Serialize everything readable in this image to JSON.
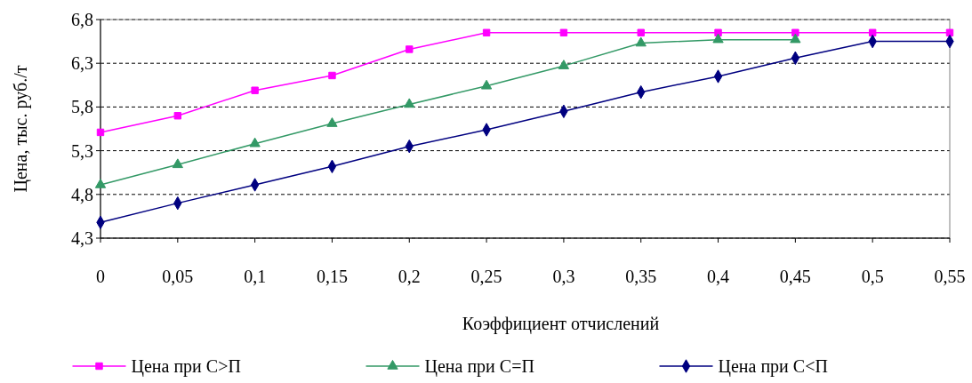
{
  "chart_data": {
    "type": "line",
    "xlabel": "Коэффициент отчислений",
    "ylabel": "Цена, тыс. руб./т",
    "categories": [
      "0",
      "0,05",
      "0,1",
      "0,15",
      "0,2",
      "0,25",
      "0,3",
      "0,35",
      "0,4",
      "0,45",
      "0,5",
      "0,55"
    ],
    "ylim": [
      4.3,
      6.8
    ],
    "yticks": [
      {
        "value": 4.3,
        "label": "4,3"
      },
      {
        "value": 4.8,
        "label": "4,8"
      },
      {
        "value": 5.3,
        "label": "5,3"
      },
      {
        "value": 5.8,
        "label": "5,8"
      },
      {
        "value": 6.3,
        "label": "6,3"
      },
      {
        "value": 6.8,
        "label": "6,8"
      }
    ],
    "grid": "y",
    "legend": "bottom",
    "series": [
      {
        "name": "Цена при С>П",
        "color": "#ff00ff",
        "marker": "square",
        "values": [
          5.51,
          5.7,
          5.99,
          6.16,
          6.46,
          6.65,
          6.65,
          6.65,
          6.65,
          6.65,
          6.65,
          6.65
        ]
      },
      {
        "name": "Цена при С=П",
        "color": "#339966",
        "marker": "triangle",
        "values": [
          4.91,
          5.14,
          5.38,
          5.61,
          5.83,
          6.04,
          6.27,
          6.53,
          6.57,
          6.57,
          null,
          null
        ]
      },
      {
        "name": "Цена при С<П",
        "color": "#000080",
        "marker": "diamond",
        "values": [
          4.48,
          4.7,
          4.91,
          5.12,
          5.35,
          5.54,
          5.75,
          5.97,
          6.15,
          6.36,
          6.55,
          6.55
        ]
      }
    ]
  }
}
